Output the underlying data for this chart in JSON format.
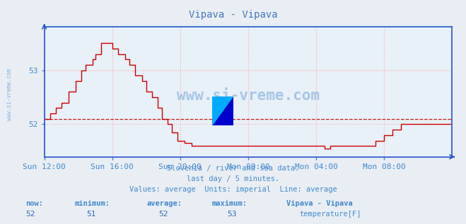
{
  "title": "Vipava - Vipava",
  "subtitle_lines": [
    "Slovenia / river and sea data.",
    "last day / 5 minutes.",
    "Values: average  Units: imperial  Line: average"
  ],
  "outer_bg_color": "#e8eef4",
  "plot_bg_color": "#e8f0f8",
  "grid_color": "#ffaaaa",
  "grid_style": ":",
  "line_color": "#cc0000",
  "avg_line_color": "#cc0000",
  "avg_line_style": "--",
  "x_label_color": "#4488cc",
  "y_label_color": "#4488cc",
  "title_color": "#4477bb",
  "subtitle_color": "#4488cc",
  "axis_color": "#2255cc",
  "ylim_min": 51.4,
  "ylim_max": 53.8,
  "yticks": [
    52,
    53
  ],
  "x_tick_labels": [
    "Sun 12:00",
    "Sun 16:00",
    "Sun 20:00",
    "Mon 00:00",
    "Mon 04:00",
    "Mon 08:00"
  ],
  "avg_value": 52.1,
  "stats_now": "52",
  "stats_min": "51",
  "stats_avg": "52",
  "stats_max": "53",
  "legend_label": "temperature[F]",
  "legend_color": "#cc0000",
  "watermark_text": "www.si-vreme.com",
  "station_label": "Vipava - Vipava",
  "left_watermark": "www.si-vreme.com",
  "logo_yellow": "#ffff00",
  "logo_blue": "#0000cc",
  "logo_cyan": "#00aaff"
}
